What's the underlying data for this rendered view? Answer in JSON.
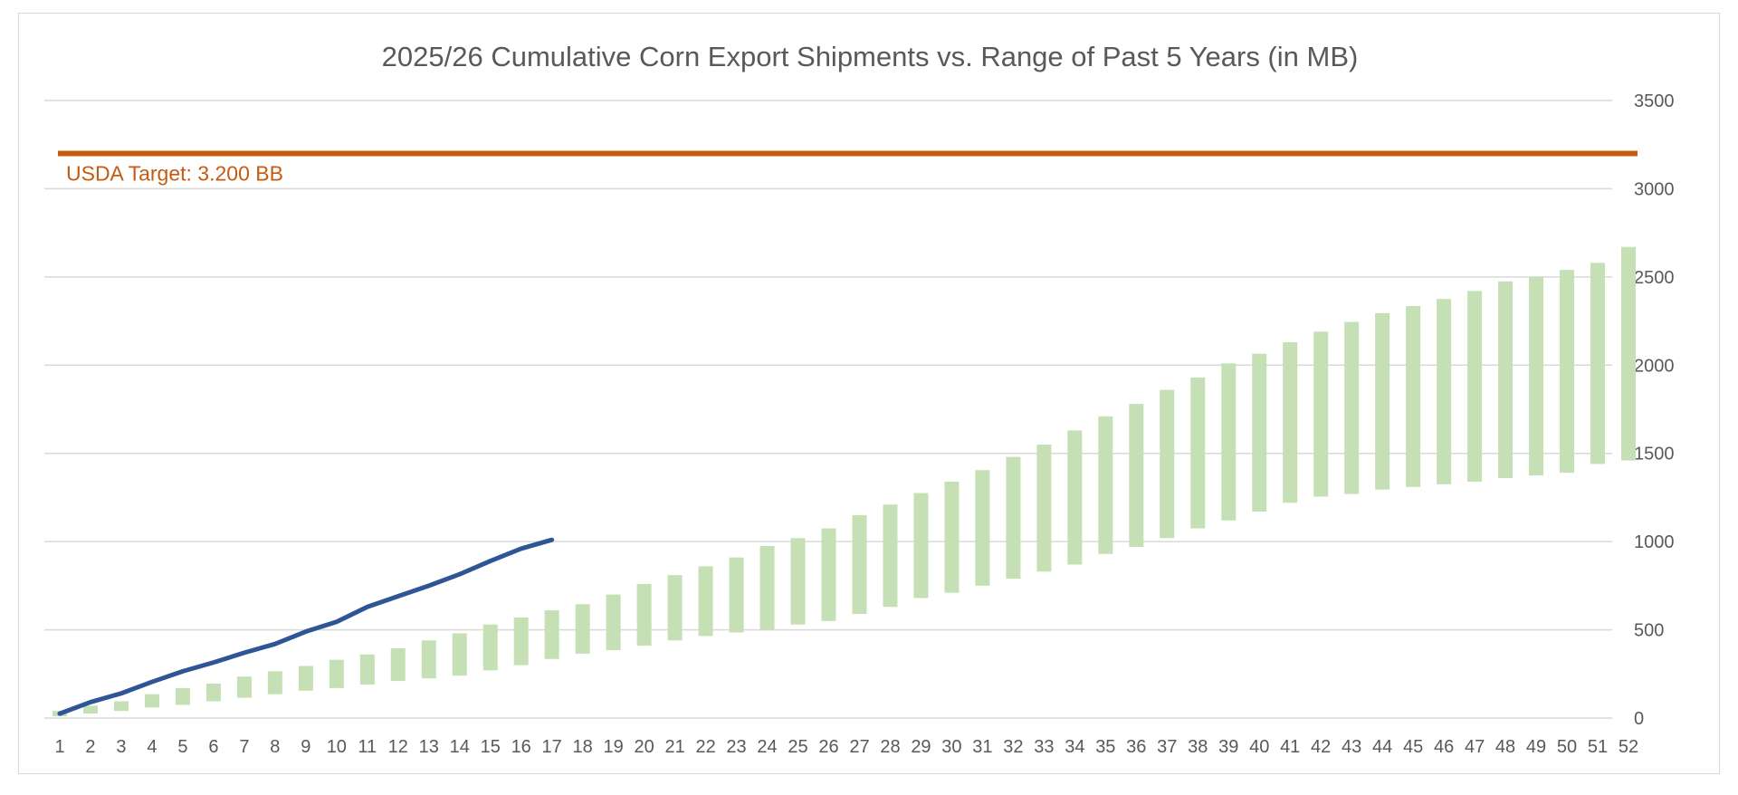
{
  "chart_data": {
    "type": "bar",
    "title": "2025/26 Cumulative Corn Export Shipments vs. Range of Past 5 Years (in MB)",
    "xlabel": "",
    "ylabel": "",
    "y_axis_position": "right",
    "ylim": [
      0,
      3500
    ],
    "y_ticks": [
      0,
      500,
      1000,
      1500,
      2000,
      2500,
      3000,
      3500
    ],
    "grid": true,
    "legend": "none",
    "categories": [
      1,
      2,
      3,
      4,
      5,
      6,
      7,
      8,
      9,
      10,
      11,
      12,
      13,
      14,
      15,
      16,
      17,
      18,
      19,
      20,
      21,
      22,
      23,
      24,
      25,
      26,
      27,
      28,
      29,
      30,
      31,
      32,
      33,
      34,
      35,
      36,
      37,
      38,
      39,
      40,
      41,
      42,
      43,
      44,
      45,
      46,
      47,
      48,
      49,
      50,
      51,
      52
    ],
    "range_series": {
      "type": "floating-bar",
      "color": "#c5e0b4",
      "low": [
        10,
        25,
        40,
        60,
        75,
        95,
        115,
        135,
        155,
        170,
        190,
        210,
        225,
        240,
        270,
        300,
        335,
        365,
        385,
        410,
        440,
        465,
        485,
        500,
        530,
        550,
        590,
        630,
        680,
        710,
        750,
        790,
        830,
        870,
        930,
        970,
        1020,
        1075,
        1120,
        1170,
        1220,
        1255,
        1270,
        1295,
        1310,
        1325,
        1340,
        1360,
        1375,
        1390,
        1440,
        1460
      ],
      "high": [
        40,
        70,
        95,
        135,
        170,
        195,
        235,
        265,
        295,
        330,
        360,
        395,
        440,
        480,
        530,
        570,
        610,
        645,
        700,
        760,
        810,
        860,
        910,
        975,
        1020,
        1075,
        1150,
        1210,
        1275,
        1340,
        1405,
        1480,
        1550,
        1630,
        1710,
        1780,
        1860,
        1930,
        2010,
        2065,
        2130,
        2190,
        2245,
        2295,
        2335,
        2375,
        2420,
        2475,
        2500,
        2540,
        2580,
        2670
      ]
    },
    "series": [
      {
        "type": "line",
        "color": "#2f5597",
        "x": [
          1,
          2,
          3,
          4,
          5,
          6,
          7,
          8,
          9,
          10,
          11,
          12,
          13,
          14,
          15,
          16,
          17
        ],
        "values": [
          25,
          90,
          140,
          205,
          265,
          315,
          370,
          420,
          490,
          545,
          630,
          690,
          750,
          815,
          890,
          960,
          1010
        ]
      }
    ],
    "target_line": {
      "value": 3200,
      "label": "USDA Target: 3.200 BB",
      "color": "#c55a11"
    }
  }
}
